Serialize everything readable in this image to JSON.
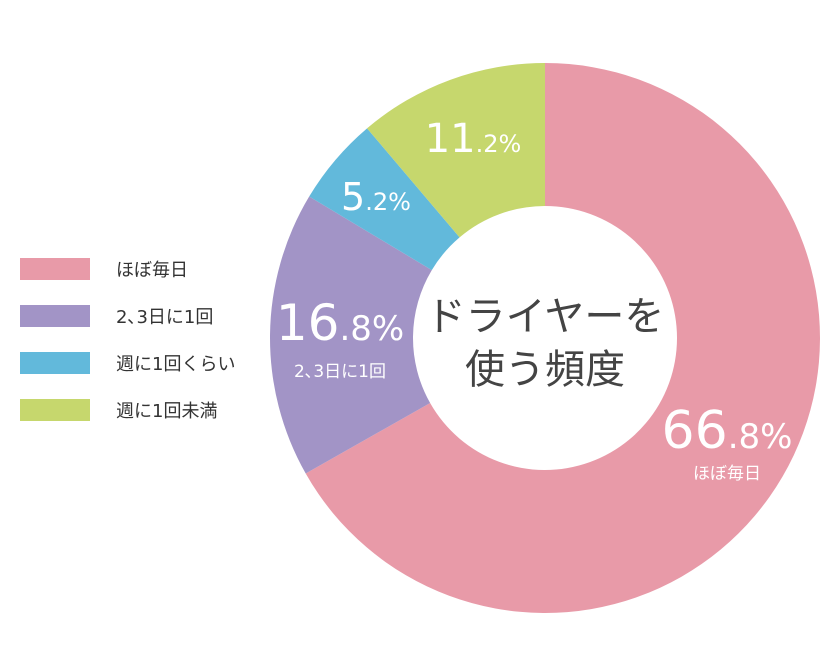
{
  "chart_data": {
    "type": "pie",
    "variant": "donut",
    "title": "ドライヤーを使う頻度",
    "title_lines": [
      "ドライヤーを",
      "使う頻度"
    ],
    "slices": [
      {
        "label": "ほぼ毎日",
        "value": 66.8,
        "int": "66",
        "dec": ".8%",
        "color": "#e89aa8"
      },
      {
        "label": "2､3日に1回",
        "value": 16.8,
        "int": "16",
        "dec": ".8%",
        "color": "#a294c6"
      },
      {
        "label": "週に1回くらい",
        "value": 5.2,
        "int": "5",
        "dec": ".2%",
        "color": "#62b9db"
      },
      {
        "label": "週に1回未満",
        "value": 11.2,
        "int": "11",
        "dec": ".2%",
        "color": "#c6d76d"
      }
    ],
    "legend_position": "left"
  }
}
